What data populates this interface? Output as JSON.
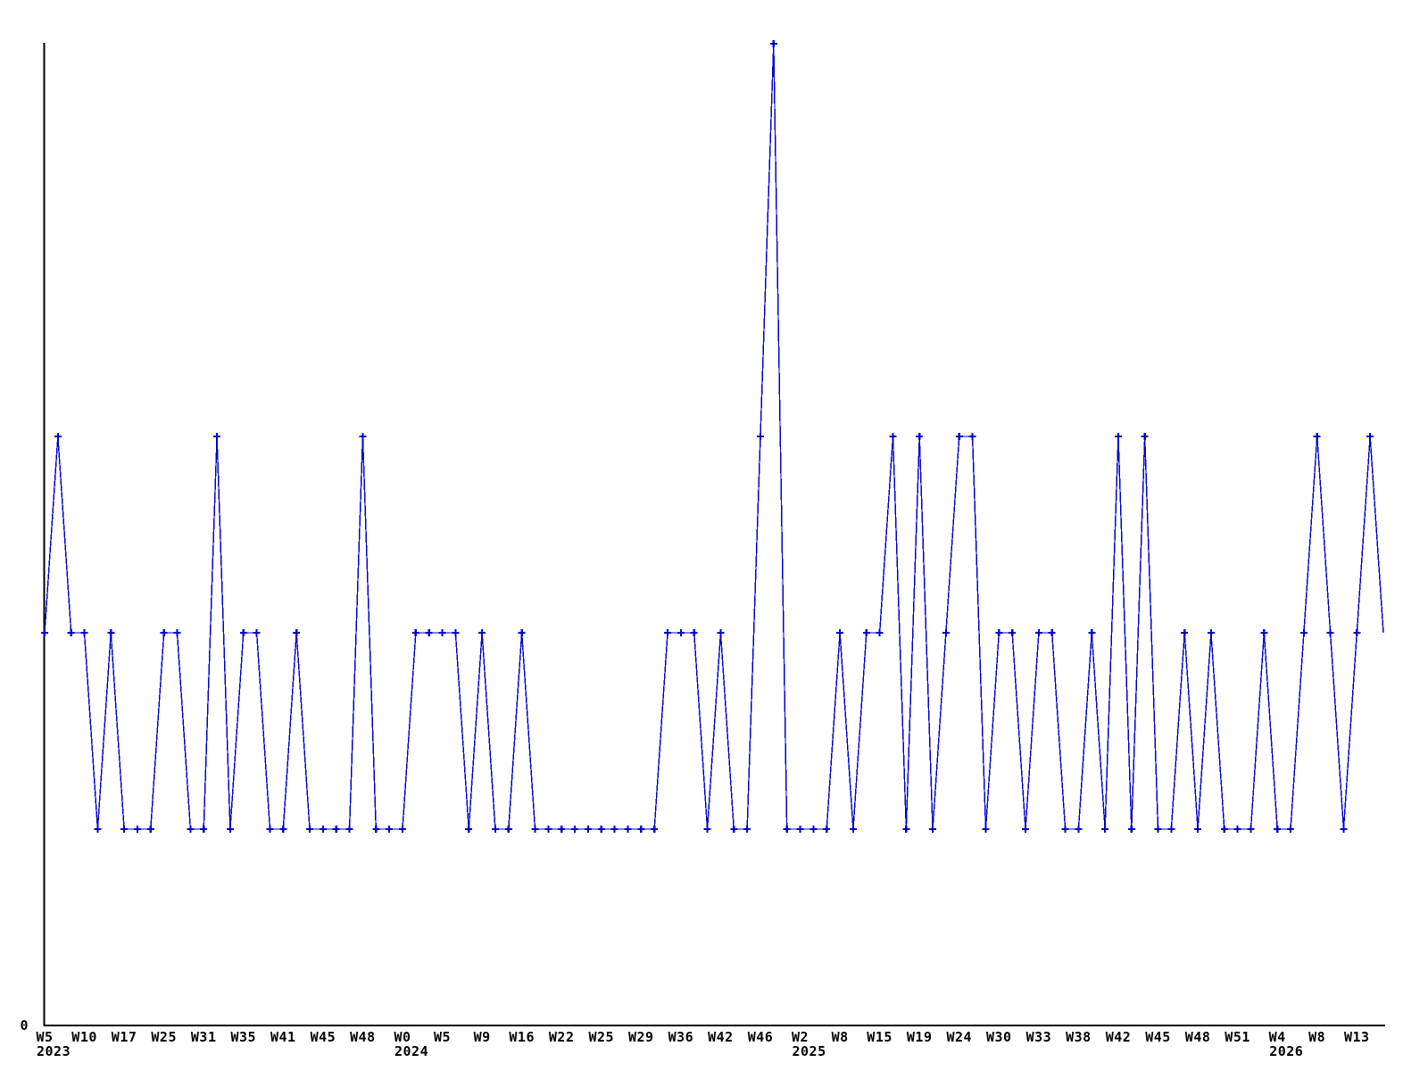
{
  "chart_data": {
    "type": "line",
    "title": "",
    "xlabel": "",
    "ylabel": "",
    "y_origin_label": "0",
    "ylim": [
      0,
      5.1
    ],
    "grid": false,
    "legend": "none",
    "line_color": "#0000cc",
    "marker_color": "#0000cc",
    "marker_shape": "plus",
    "axis_color": "#000000",
    "label_color": "#000000",
    "tick_every": 3,
    "ticks": [
      {
        "week": "W5",
        "year": "2023"
      },
      {
        "week": "W10"
      },
      {
        "week": "W17"
      },
      {
        "week": "W25"
      },
      {
        "week": "W31"
      },
      {
        "week": "W35"
      },
      {
        "week": "W41"
      },
      {
        "week": "W45"
      },
      {
        "week": "W48"
      },
      {
        "week": "W0",
        "year": "2024"
      },
      {
        "week": "W5"
      },
      {
        "week": "W9"
      },
      {
        "week": "W16"
      },
      {
        "week": "W22"
      },
      {
        "week": "W25"
      },
      {
        "week": "W29"
      },
      {
        "week": "W36"
      },
      {
        "week": "W42"
      },
      {
        "week": "W46"
      },
      {
        "week": "W2",
        "year": "2025"
      },
      {
        "week": "W8"
      },
      {
        "week": "W15"
      },
      {
        "week": "W19"
      },
      {
        "week": "W24"
      },
      {
        "week": "W30"
      },
      {
        "week": "W33"
      },
      {
        "week": "W38"
      },
      {
        "week": "W42"
      },
      {
        "week": "W45"
      },
      {
        "week": "W48"
      },
      {
        "week": "W51"
      },
      {
        "week": "W4",
        "year": "2026"
      },
      {
        "week": "W8"
      },
      {
        "week": "W13"
      }
    ],
    "values": [
      2,
      3,
      2,
      2,
      1,
      2,
      1,
      1,
      1,
      2,
      2,
      1,
      1,
      3,
      1,
      2,
      2,
      1,
      1,
      2,
      1,
      1,
      1,
      1,
      3,
      1,
      1,
      1,
      2,
      2,
      2,
      2,
      1,
      2,
      1,
      1,
      2,
      1,
      1,
      1,
      1,
      1,
      1,
      1,
      1,
      1,
      1,
      2,
      2,
      2,
      1,
      2,
      1,
      1,
      3,
      5,
      1,
      1,
      1,
      1,
      2,
      1,
      2,
      2,
      3,
      1,
      3,
      1,
      2,
      3,
      3,
      1,
      2,
      2,
      1,
      2,
      2,
      1,
      1,
      2,
      1,
      3,
      1,
      3,
      1,
      1,
      2,
      1,
      2,
      1,
      1,
      1,
      2,
      1,
      1,
      2,
      3,
      2,
      1,
      2,
      3,
      2
    ]
  }
}
